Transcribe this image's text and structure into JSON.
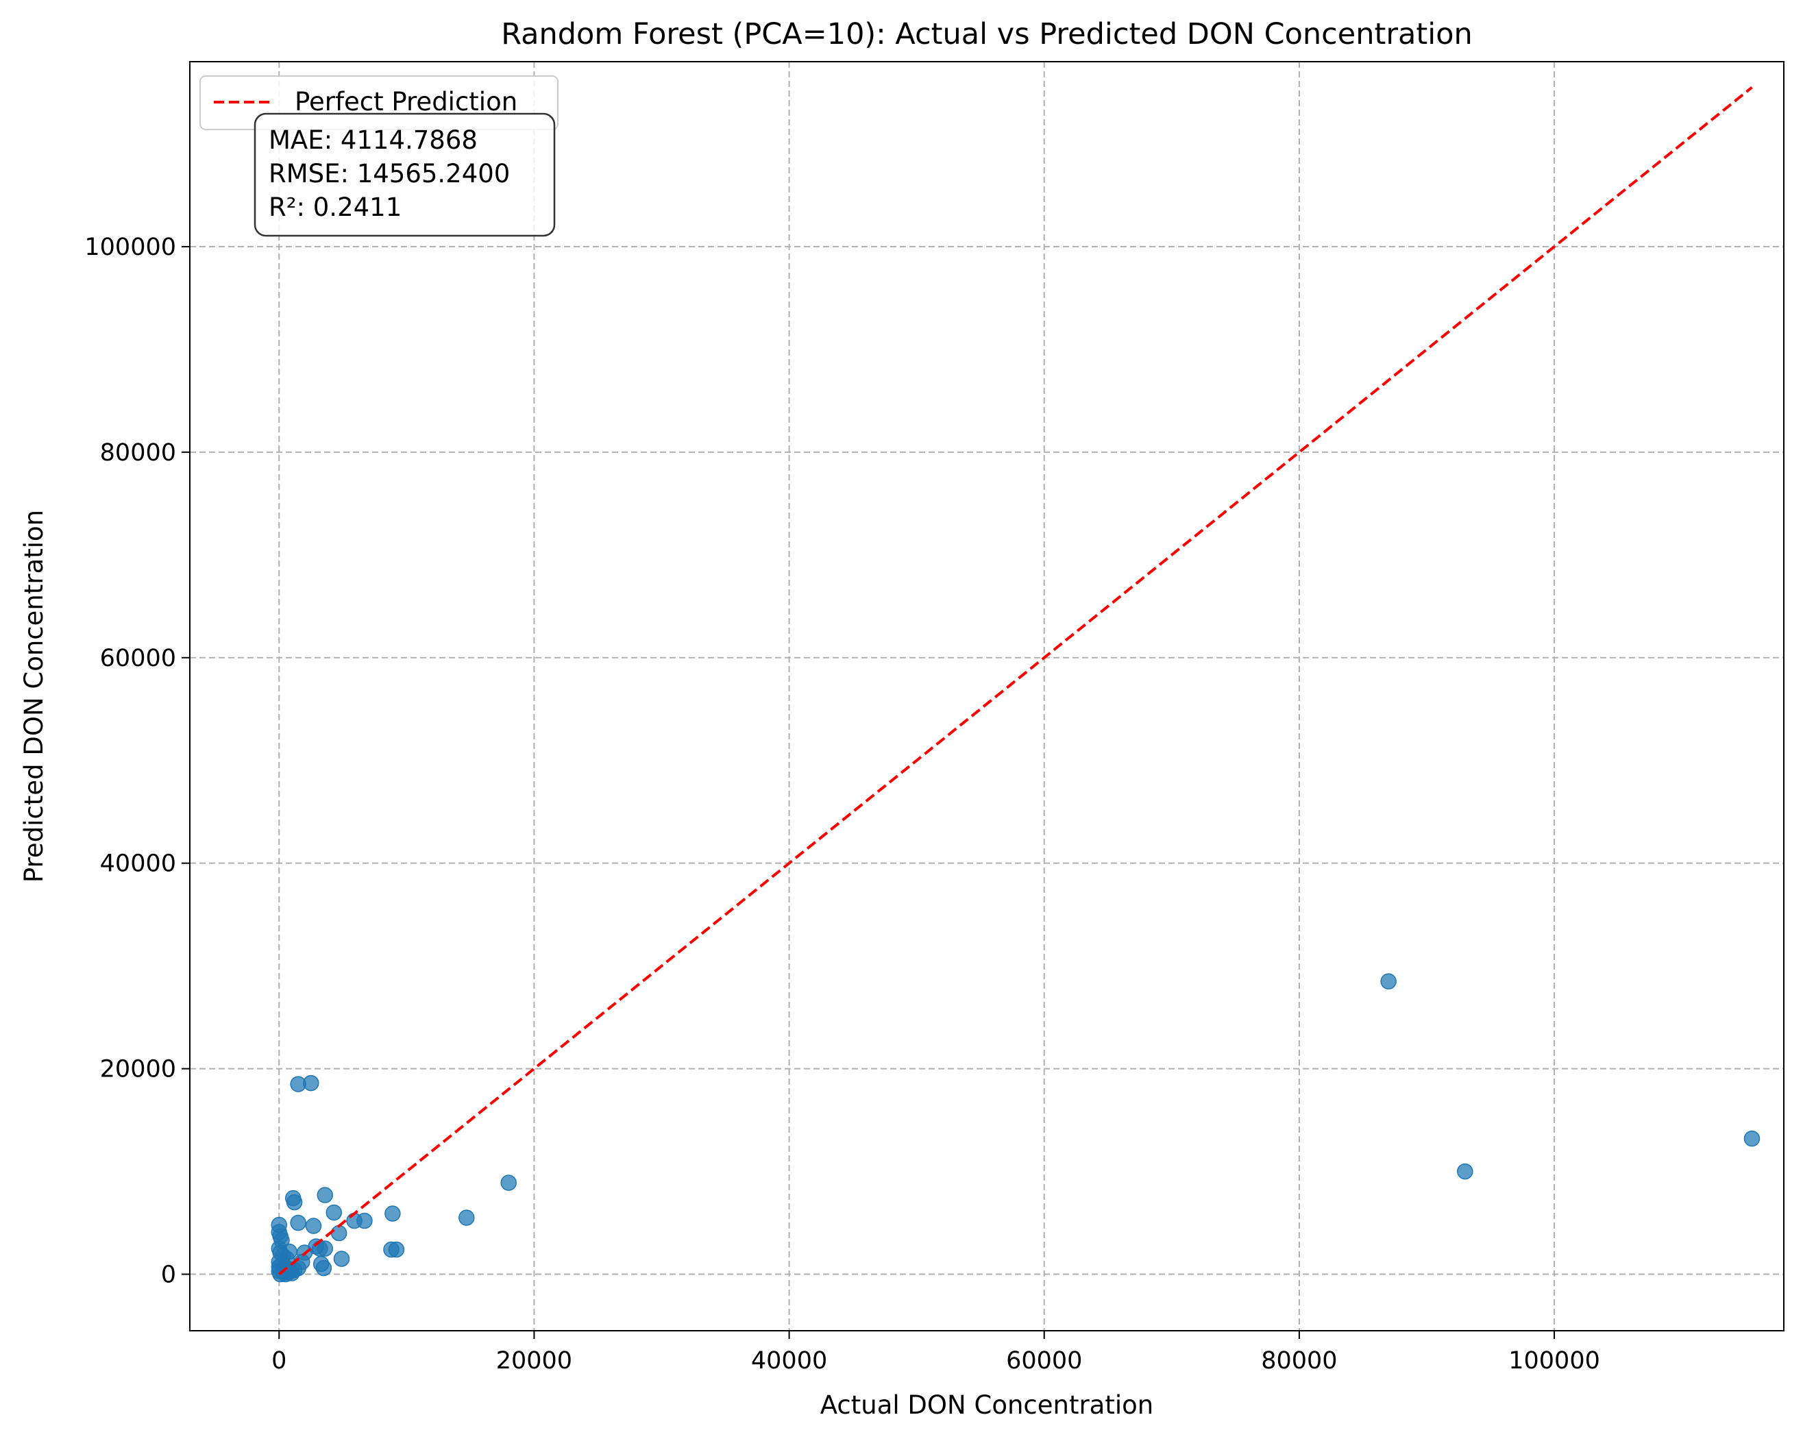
{
  "chart_data": {
    "type": "scatter",
    "title": "Random Forest (PCA=10): Actual vs Predicted DON Concentration",
    "xlabel": "Actual DON Concentration",
    "ylabel": "Predicted DON Concentration",
    "xlim": [
      -7000,
      118000
    ],
    "ylim": [
      -5500,
      118000
    ],
    "xticks": [
      0,
      20000,
      40000,
      60000,
      80000,
      100000
    ],
    "yticks": [
      0,
      20000,
      40000,
      60000,
      80000,
      100000
    ],
    "grid": true,
    "legend": {
      "placement": "top-left",
      "entries": [
        {
          "label": "Perfect Prediction",
          "style": "dashed",
          "color": "#ff0000"
        }
      ]
    },
    "metrics_box": {
      "lines": [
        "MAE: 4114.7868",
        "RMSE: 14565.2400",
        "R²: 0.2411"
      ]
    },
    "reference_line": {
      "name": "Perfect Prediction",
      "x": [
        0,
        115500
      ],
      "y": [
        0,
        115500
      ],
      "color": "#ff0000"
    },
    "series": [
      {
        "color": "#1f77b4",
        "points": [
          [
            1500,
            18500
          ],
          [
            2500,
            18600
          ],
          [
            87000,
            28500
          ],
          [
            93000,
            10000
          ],
          [
            115500,
            13200
          ],
          [
            18000,
            8900
          ],
          [
            14700,
            5500
          ],
          [
            8900,
            5900
          ],
          [
            8800,
            2400
          ],
          [
            9200,
            2400
          ],
          [
            3600,
            7700
          ],
          [
            1100,
            7400
          ],
          [
            1200,
            7000
          ],
          [
            4300,
            6000
          ],
          [
            5900,
            5200
          ],
          [
            6700,
            5200
          ],
          [
            1500,
            5000
          ],
          [
            2700,
            4700
          ],
          [
            4700,
            4000
          ],
          [
            0,
            4800
          ],
          [
            0,
            4100
          ],
          [
            100,
            3700
          ],
          [
            200,
            3300
          ],
          [
            3600,
            2500
          ],
          [
            2900,
            2700
          ],
          [
            3200,
            2500
          ],
          [
            2000,
            2100
          ],
          [
            800,
            2200
          ],
          [
            4900,
            1500
          ],
          [
            3300,
            1000
          ],
          [
            3500,
            600
          ],
          [
            0,
            2500
          ],
          [
            100,
            2100
          ],
          [
            300,
            1800
          ],
          [
            600,
            1500
          ],
          [
            0,
            1200
          ],
          [
            200,
            900
          ],
          [
            500,
            700
          ],
          [
            800,
            500
          ],
          [
            1200,
            400
          ],
          [
            0,
            300
          ],
          [
            300,
            200
          ],
          [
            700,
            150
          ],
          [
            1000,
            100
          ],
          [
            1500,
            600
          ],
          [
            1800,
            1200
          ],
          [
            0,
            700
          ],
          [
            100,
            0
          ],
          [
            500,
            0
          ],
          [
            900,
            300
          ]
        ]
      }
    ]
  }
}
